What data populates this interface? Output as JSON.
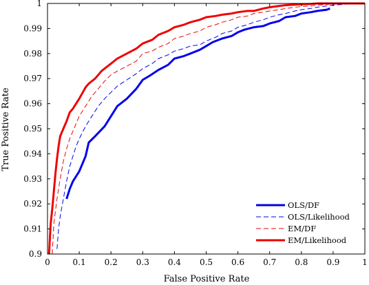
{
  "chart_data": {
    "type": "line",
    "title": "",
    "xlabel": "False Positive Rate",
    "ylabel": "True Positive Rate",
    "xlim": [
      0,
      1
    ],
    "ylim": [
      0.9,
      1
    ],
    "grid": false,
    "legend_position": "bottom-right",
    "x_ticks": [
      "0",
      "0.1",
      "0.2",
      "0.3",
      "0.4",
      "0.5",
      "0.6",
      "0.7",
      "0.8",
      "0.9",
      "1"
    ],
    "y_ticks": [
      "0.9",
      "0.91",
      "0.92",
      "0.93",
      "0.94",
      "0.95",
      "0.96",
      "0.97",
      "0.98",
      "0.99",
      "1"
    ],
    "series": [
      {
        "name": "OLS/DF",
        "color": "#0000ee",
        "dash": "solid",
        "thick": true,
        "x": [
          0.06,
          0.07,
          0.08,
          0.1,
          0.12,
          0.13,
          0.15,
          0.18,
          0.2,
          0.22,
          0.25,
          0.28,
          0.3,
          0.32,
          0.35,
          0.38,
          0.4,
          0.43,
          0.45,
          0.48,
          0.5,
          0.52,
          0.55,
          0.58,
          0.6,
          0.62,
          0.65,
          0.68,
          0.7,
          0.73,
          0.75,
          0.78,
          0.8,
          0.83,
          0.85,
          0.88,
          0.89
        ],
        "y": [
          0.922,
          0.926,
          0.929,
          0.933,
          0.939,
          0.9445,
          0.947,
          0.951,
          0.955,
          0.959,
          0.962,
          0.966,
          0.9695,
          0.971,
          0.9735,
          0.9755,
          0.978,
          0.979,
          0.98,
          0.9815,
          0.983,
          0.9845,
          0.986,
          0.987,
          0.9885,
          0.9895,
          0.9905,
          0.991,
          0.992,
          0.993,
          0.9945,
          0.995,
          0.996,
          0.9965,
          0.997,
          0.9975,
          0.998
        ]
      },
      {
        "name": "OLS/Likelihood",
        "color": "#0000ee",
        "dash": "dashed",
        "thick": false,
        "x": [
          0.03,
          0.035,
          0.04,
          0.05,
          0.06,
          0.07,
          0.08,
          0.09,
          0.1,
          0.12,
          0.14,
          0.16,
          0.18,
          0.2,
          0.22,
          0.25,
          0.28,
          0.3,
          0.33,
          0.35,
          0.38,
          0.4,
          0.43,
          0.45,
          0.48,
          0.5,
          0.53,
          0.55,
          0.58,
          0.6,
          0.63,
          0.65,
          0.68,
          0.7,
          0.73,
          0.75,
          0.78,
          0.8,
          0.83,
          0.85,
          0.88,
          0.9,
          0.93,
          0.95,
          0.97,
          1.0
        ],
        "y": [
          0.902,
          0.91,
          0.915,
          0.922,
          0.929,
          0.935,
          0.939,
          0.943,
          0.946,
          0.951,
          0.955,
          0.959,
          0.962,
          0.9645,
          0.967,
          0.9695,
          0.972,
          0.974,
          0.976,
          0.978,
          0.9795,
          0.981,
          0.982,
          0.983,
          0.9835,
          0.985,
          0.9865,
          0.988,
          0.989,
          0.9905,
          0.9915,
          0.9925,
          0.9935,
          0.9945,
          0.9955,
          0.996,
          0.997,
          0.9975,
          0.998,
          0.9985,
          0.999,
          0.9993,
          0.9996,
          0.9998,
          1.0,
          1.0
        ]
      },
      {
        "name": "EM/DF",
        "color": "#ee0000",
        "dash": "dashed",
        "thick": false,
        "x": [
          0.015,
          0.02,
          0.03,
          0.04,
          0.05,
          0.06,
          0.07,
          0.08,
          0.09,
          0.1,
          0.12,
          0.14,
          0.16,
          0.18,
          0.2,
          0.22,
          0.25,
          0.28,
          0.3,
          0.33,
          0.35,
          0.38,
          0.4,
          0.43,
          0.45,
          0.48,
          0.5,
          0.53,
          0.55,
          0.58,
          0.6,
          0.63,
          0.65,
          0.68,
          0.7,
          0.73,
          0.75,
          0.78,
          0.8,
          0.83,
          0.85,
          0.88,
          0.9,
          0.93,
          0.95,
          1.0
        ],
        "y": [
          0.9,
          0.912,
          0.922,
          0.93,
          0.937,
          0.942,
          0.946,
          0.949,
          0.952,
          0.955,
          0.959,
          0.963,
          0.966,
          0.969,
          0.9715,
          0.973,
          0.975,
          0.977,
          0.98,
          0.981,
          0.9825,
          0.984,
          0.986,
          0.987,
          0.988,
          0.989,
          0.9905,
          0.9915,
          0.9925,
          0.9935,
          0.9945,
          0.995,
          0.996,
          0.9965,
          0.997,
          0.9975,
          0.998,
          0.9985,
          0.9988,
          0.999,
          0.9993,
          0.9996,
          0.9998,
          1.0,
          1.0,
          1.0
        ]
      },
      {
        "name": "EM/Likelihood",
        "color": "#ee0000",
        "dash": "solid",
        "thick": true,
        "x": [
          0.005,
          0.007,
          0.01,
          0.015,
          0.02,
          0.025,
          0.03,
          0.035,
          0.04,
          0.05,
          0.06,
          0.07,
          0.08,
          0.09,
          0.1,
          0.12,
          0.13,
          0.15,
          0.17,
          0.18,
          0.2,
          0.22,
          0.25,
          0.28,
          0.3,
          0.33,
          0.35,
          0.38,
          0.4,
          0.43,
          0.45,
          0.48,
          0.5,
          0.53,
          0.55,
          0.58,
          0.6,
          0.63,
          0.65,
          0.68,
          0.7,
          0.73,
          0.75,
          0.78,
          0.8,
          0.83,
          0.85,
          0.88,
          0.9,
          1.0
        ],
        "y": [
          0.9,
          0.905,
          0.912,
          0.918,
          0.925,
          0.932,
          0.938,
          0.943,
          0.947,
          0.95,
          0.953,
          0.9565,
          0.958,
          0.96,
          0.962,
          0.9665,
          0.968,
          0.97,
          0.973,
          0.974,
          0.976,
          0.978,
          0.98,
          0.982,
          0.984,
          0.9855,
          0.9875,
          0.989,
          0.9905,
          0.9915,
          0.9925,
          0.9935,
          0.9945,
          0.995,
          0.9955,
          0.996,
          0.9965,
          0.997,
          0.997,
          0.998,
          0.9985,
          0.999,
          0.9993,
          0.9995,
          0.9997,
          0.9998,
          1.0,
          1.0,
          1.0,
          1.0
        ]
      }
    ]
  }
}
